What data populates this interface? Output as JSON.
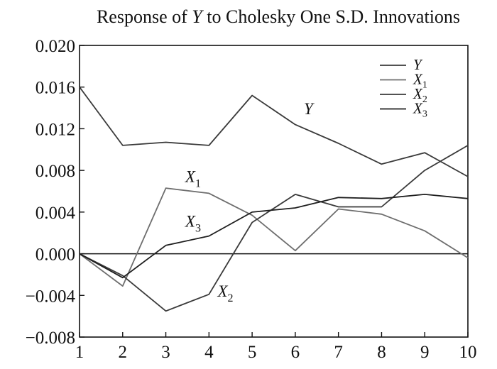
{
  "chart_data": {
    "type": "line",
    "title_parts": [
      "Response of ",
      "Y",
      " to Cholesky One S.D. Innovations"
    ],
    "x": [
      1,
      2,
      3,
      4,
      5,
      6,
      7,
      8,
      9,
      10
    ],
    "x_tick_labels": [
      "1",
      "2",
      "3",
      "4",
      "5",
      "6",
      "7",
      "8",
      "9",
      "10"
    ],
    "ylim": [
      -0.008,
      0.02
    ],
    "y_ticks": [
      -0.008,
      -0.004,
      0.0,
      0.004,
      0.008,
      0.012,
      0.016,
      0.02
    ],
    "y_tick_labels": [
      "−0.008",
      "−0.004",
      "0.000",
      "0.004",
      "0.008",
      "0.012",
      "0.016",
      "0.020"
    ],
    "grid": false,
    "zero_line": true,
    "legend_position": "top-right",
    "series": [
      {
        "name": "Y",
        "base": "Y",
        "sub": "",
        "color": "#3a3a3a",
        "values": [
          0.016,
          0.0104,
          0.0107,
          0.0104,
          0.0152,
          0.0124,
          0.0106,
          0.0086,
          0.0097,
          0.0074
        ]
      },
      {
        "name": "X1",
        "base": "X",
        "sub": "1",
        "color": "#6e6e6e",
        "values": [
          0.0,
          -0.0031,
          0.0063,
          0.0058,
          0.0037,
          0.0003,
          0.0043,
          0.0038,
          0.0022,
          -0.0004
        ]
      },
      {
        "name": "X2",
        "base": "X",
        "sub": "2",
        "color": "#3a3a3a",
        "values": [
          0.0,
          -0.0021,
          -0.0055,
          -0.0039,
          0.003,
          0.0057,
          0.0045,
          0.0045,
          0.008,
          0.0104
        ]
      },
      {
        "name": "X3",
        "base": "X",
        "sub": "3",
        "color": "#1e1e1e",
        "values": [
          0.0,
          -0.0023,
          0.0008,
          0.0017,
          0.004,
          0.0044,
          0.0054,
          0.0053,
          0.0057,
          0.0053
        ]
      }
    ],
    "annotations": [
      {
        "base": "Y",
        "sub": "",
        "x": 6.2,
        "y": 0.0134
      },
      {
        "base": "X",
        "sub": "1",
        "x": 3.45,
        "y": 0.0069
      },
      {
        "base": "X",
        "sub": "3",
        "x": 3.45,
        "y": 0.0026
      },
      {
        "base": "X",
        "sub": "2",
        "x": 4.2,
        "y": -0.0041
      }
    ]
  }
}
